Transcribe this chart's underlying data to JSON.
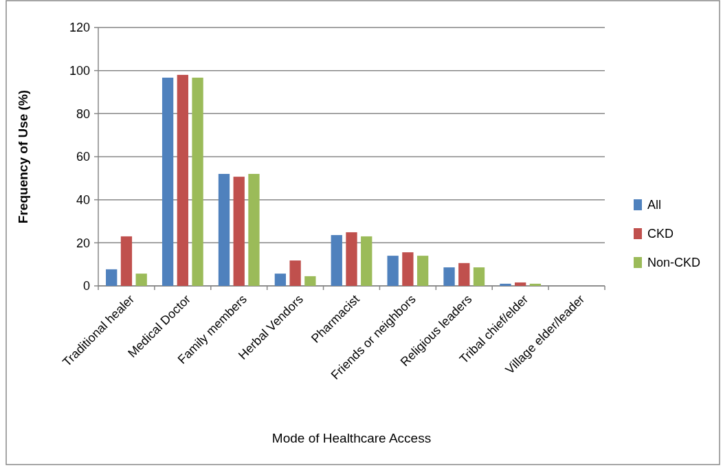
{
  "chart_data": {
    "type": "bar",
    "xlabel": "Mode of Healthcare Access",
    "ylabel": "Frequency of Use (%)",
    "categories": [
      "Traditional healer",
      "Medical Doctor",
      "Family members",
      "Herbal Vendors",
      "Pharmacist",
      "Friends or neighbors",
      "Religious leaders",
      "Tribal chief/elder",
      "Village elder/leader"
    ],
    "series": [
      {
        "name": "All",
        "color": "#4f81bd",
        "values": [
          7.7,
          96.7,
          52,
          5.7,
          23.6,
          14,
          8.6,
          1,
          0
        ]
      },
      {
        "name": "CKD",
        "color": "#c0504d",
        "values": [
          23,
          98,
          50.7,
          11.8,
          24.9,
          15.6,
          10.6,
          1.6,
          0
        ]
      },
      {
        "name": "Non-CKD",
        "color": "#9bbb59",
        "values": [
          5.7,
          96.7,
          52,
          4.5,
          23,
          14,
          8.6,
          1,
          0
        ]
      }
    ],
    "ylim": [
      0,
      120
    ],
    "yticks": [
      0,
      20,
      40,
      60,
      80,
      100,
      120
    ],
    "grid": "y",
    "legend": "right"
  }
}
